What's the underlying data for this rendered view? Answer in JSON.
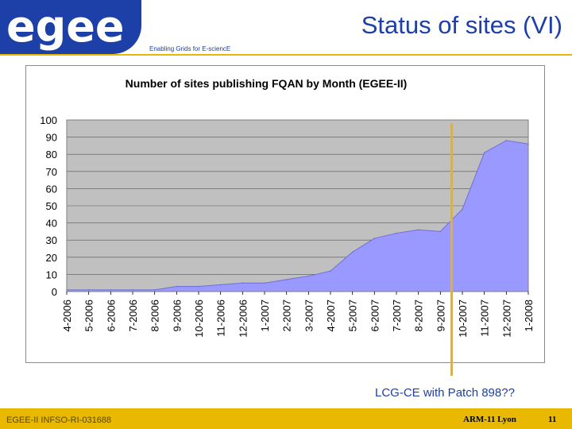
{
  "header": {
    "logo_text": "egee",
    "title": "Status of sites (VI)",
    "tagline": "Enabling Grids for E-sciencE"
  },
  "colors": {
    "brand_blue": "#1c3fa8",
    "accent_gold": "#e8b900",
    "area_fill": "#9999ff",
    "plot_bg": "#c0c0c0",
    "annotation_line": "#f0b400"
  },
  "annotation": {
    "text": "LCG-CE with Patch 898??",
    "at_category": "10-2007"
  },
  "footer": {
    "left": "EGEE-II INFSO-RI-031688",
    "center": "ARM-11 Lyon",
    "page": "11"
  },
  "chart_data": {
    "type": "area",
    "title": "Number of sites publishing FQAN by Month (EGEE-II)",
    "xlabel": "",
    "ylabel": "",
    "ylim": [
      0,
      100
    ],
    "yticks": [
      0,
      10,
      20,
      30,
      40,
      50,
      60,
      70,
      80,
      90,
      100
    ],
    "grid": true,
    "legend": "none",
    "categories": [
      "4-2006",
      "5-2006",
      "6-2006",
      "7-2006",
      "8-2006",
      "9-2006",
      "10-2006",
      "11-2006",
      "12-2006",
      "1-2007",
      "2-2007",
      "3-2007",
      "4-2007",
      "5-2007",
      "6-2007",
      "7-2007",
      "8-2007",
      "9-2007",
      "10-2007",
      "11-2007",
      "12-2007",
      "1-2008"
    ],
    "values": [
      1,
      1,
      1,
      1,
      1,
      3,
      3,
      4,
      5,
      5,
      7,
      9,
      12,
      23,
      31,
      34,
      36,
      35,
      48,
      81,
      88,
      86
    ]
  }
}
